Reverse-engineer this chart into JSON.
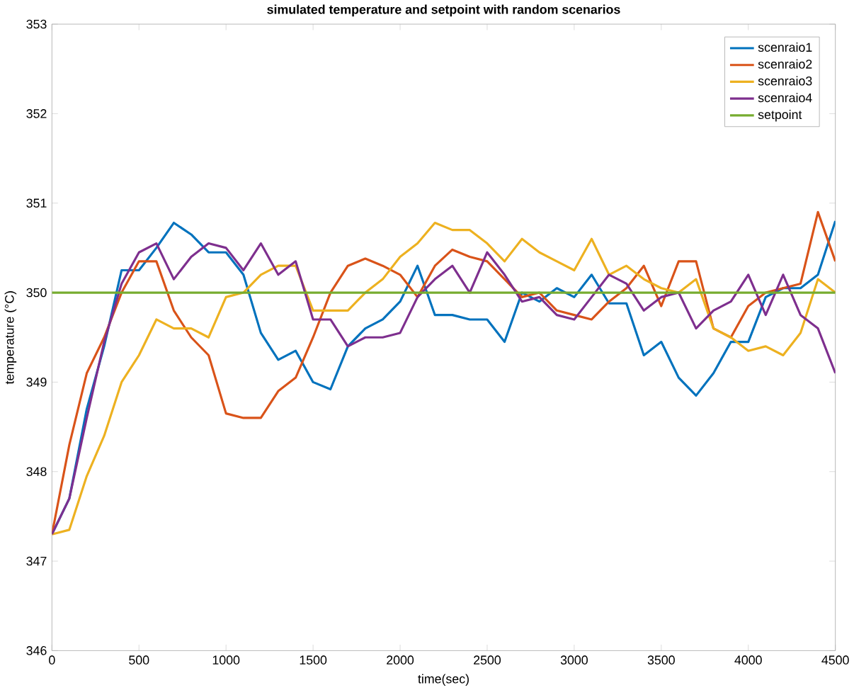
{
  "chart_data": {
    "type": "line",
    "title": "simulated temperature and setpoint with random scenarios",
    "xlabel": "time(sec)",
    "ylabel": "temperature (°C)",
    "x": [
      0,
      100,
      200,
      300,
      400,
      500,
      600,
      700,
      800,
      900,
      1000,
      1100,
      1200,
      1300,
      1400,
      1500,
      1600,
      1700,
      1800,
      1900,
      2000,
      2100,
      2200,
      2300,
      2400,
      2500,
      2600,
      2700,
      2800,
      2900,
      3000,
      3100,
      3200,
      3300,
      3400,
      3500,
      3600,
      3700,
      3800,
      3900,
      4000,
      4100,
      4200,
      4300,
      4400,
      4500
    ],
    "series": [
      {
        "name": "scenraio1",
        "color": "#0072bd",
        "values": [
          347.3,
          347.7,
          348.7,
          349.4,
          350.25,
          350.25,
          350.5,
          350.78,
          350.65,
          350.45,
          350.45,
          350.2,
          349.55,
          349.25,
          349.35,
          349.0,
          348.92,
          349.4,
          349.6,
          349.7,
          349.9,
          350.3,
          349.75,
          349.75,
          349.7,
          349.7,
          349.45,
          350.0,
          349.9,
          350.05,
          349.95,
          350.2,
          349.88,
          349.88,
          349.3,
          349.45,
          349.05,
          348.85,
          349.1,
          349.45,
          349.45,
          349.95,
          350.05,
          350.05,
          350.2,
          350.8
        ]
      },
      {
        "name": "scenraio2",
        "color": "#d95319",
        "values": [
          347.3,
          348.3,
          349.1,
          349.5,
          350.0,
          350.35,
          350.35,
          349.8,
          349.5,
          349.3,
          348.65,
          348.6,
          348.6,
          348.9,
          349.05,
          349.5,
          350.0,
          350.3,
          350.38,
          350.3,
          350.2,
          349.95,
          350.3,
          350.48,
          350.4,
          350.35,
          350.15,
          349.95,
          350.0,
          349.8,
          349.75,
          349.7,
          349.9,
          350.05,
          350.3,
          349.85,
          350.35,
          350.35,
          349.6,
          349.5,
          349.85,
          350.0,
          350.05,
          350.1,
          350.9,
          350.35
        ]
      },
      {
        "name": "scenraio3",
        "color": "#edb120",
        "values": [
          347.3,
          347.35,
          347.95,
          348.4,
          349.0,
          349.3,
          349.7,
          349.6,
          349.6,
          349.5,
          349.95,
          350.0,
          350.2,
          350.3,
          350.3,
          349.8,
          349.8,
          349.8,
          350.0,
          350.15,
          350.4,
          350.55,
          350.78,
          350.7,
          350.7,
          350.55,
          350.35,
          350.6,
          350.45,
          350.35,
          350.25,
          350.6,
          350.2,
          350.3,
          350.15,
          350.05,
          350.0,
          350.15,
          349.6,
          349.5,
          349.35,
          349.4,
          349.3,
          349.55,
          350.15,
          350.0
        ]
      },
      {
        "name": "scenraio4",
        "color": "#7e2f8e",
        "values": [
          347.3,
          347.7,
          348.6,
          349.45,
          350.1,
          350.45,
          350.55,
          350.15,
          350.4,
          350.55,
          350.5,
          350.25,
          350.55,
          350.2,
          350.35,
          349.7,
          349.7,
          349.4,
          349.5,
          349.5,
          349.55,
          349.95,
          350.15,
          350.3,
          350.0,
          350.45,
          350.2,
          349.9,
          349.95,
          349.75,
          349.7,
          349.95,
          350.2,
          350.1,
          349.8,
          349.95,
          350.0,
          349.6,
          349.8,
          349.9,
          350.2,
          349.75,
          350.2,
          349.75,
          349.6,
          349.1
        ]
      },
      {
        "name": "setpoint",
        "color": "#77ac30",
        "x": [
          0,
          4500
        ],
        "values": [
          350,
          350
        ]
      }
    ],
    "xlim": [
      0,
      4500
    ],
    "ylim": [
      346,
      353
    ],
    "xticks": [
      0,
      500,
      1000,
      1500,
      2000,
      2500,
      3000,
      3500,
      4000,
      4500
    ],
    "yticks": [
      346,
      347,
      348,
      349,
      350,
      351,
      352,
      353
    ],
    "grid": false,
    "legend": "top right",
    "marker": "none",
    "line_style": "solid"
  }
}
